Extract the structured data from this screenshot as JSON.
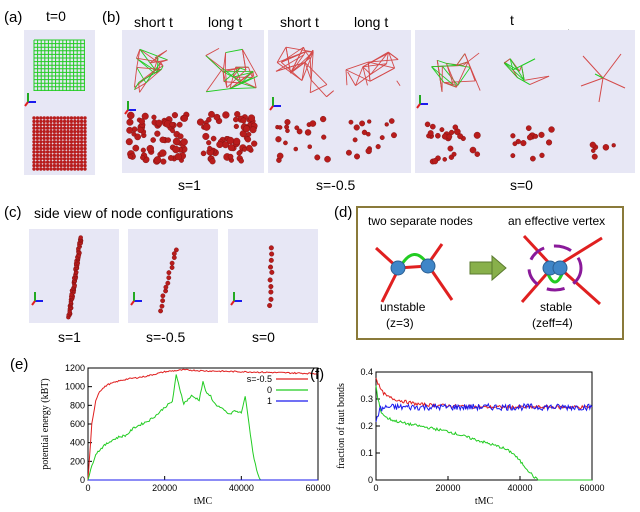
{
  "panel_a": {
    "label": "(a)",
    "title": "t=0"
  },
  "panel_b": {
    "label": "(b)",
    "headers": [
      "short t",
      "long t",
      "short t",
      "long t",
      "t"
    ],
    "s_labels": [
      "s=1",
      "s=-0.5",
      "s=0"
    ]
  },
  "panel_c": {
    "label": "(c)",
    "title": "side view of node configurations",
    "s_labels": [
      "s=1",
      "s=-0.5",
      "s=0"
    ]
  },
  "panel_d": {
    "label": "(d)",
    "left_title": "two separate nodes",
    "right_title": "an effective vertex",
    "left_state": "unstable",
    "left_z": "(z=3)",
    "right_state": "stable",
    "right_z": "(zeff=4)"
  },
  "colors": {
    "red": "#e02020",
    "green": "#22cc22",
    "blue": "#1a1aee",
    "node": "#3f86c8",
    "arrow": "#88b04b",
    "frame": "#8a7a3a"
  },
  "chart_data": [
    {
      "panel": "(e)",
      "type": "line",
      "xlabel": "tMC",
      "ylabel": "potential energy (kBT)",
      "xlim": [
        0,
        60000
      ],
      "ylim": [
        0,
        1200
      ],
      "xticks": [
        0,
        20000,
        40000,
        60000
      ],
      "yticks": [
        0,
        200,
        400,
        600,
        800,
        1000,
        1200
      ],
      "legend_title": "s=-0.5",
      "series": [
        {
          "name": "-0.5",
          "color": "#e02020",
          "x": [
            0,
            1000,
            2000,
            3000,
            5000,
            8000,
            10000,
            15000,
            20000,
            25000,
            30000,
            40000,
            50000,
            60000
          ],
          "y": [
            0,
            600,
            850,
            950,
            1020,
            1060,
            1080,
            1110,
            1160,
            1180,
            1170,
            1160,
            1150,
            1140
          ]
        },
        {
          "name": "0",
          "color": "#22cc22",
          "x": [
            0,
            1000,
            2000,
            4000,
            6000,
            8000,
            10000,
            12000,
            14000,
            16000,
            18000,
            20000,
            22000,
            23000,
            25000,
            27000,
            29000,
            30000,
            31000,
            32000,
            33000,
            35000,
            37000,
            38000,
            40000,
            41000,
            42000,
            43000,
            44000,
            45000,
            60000
          ],
          "y": [
            0,
            150,
            280,
            360,
            420,
            460,
            480,
            560,
            600,
            640,
            700,
            780,
            840,
            1120,
            820,
            900,
            860,
            1050,
            920,
            900,
            820,
            760,
            700,
            740,
            720,
            900,
            600,
            300,
            100,
            0,
            0
          ]
        },
        {
          "name": "1",
          "color": "#1a1aee",
          "x": [
            0,
            60000
          ],
          "y": [
            0,
            0
          ]
        }
      ]
    },
    {
      "panel": "(f)",
      "type": "line",
      "xlabel": "tMC",
      "ylabel": "fraction of taut bonds",
      "xlim": [
        0,
        60000
      ],
      "ylim": [
        0,
        0.4
      ],
      "xticks": [
        0,
        20000,
        40000,
        60000
      ],
      "yticks": [
        0,
        0.1,
        0.2,
        0.3,
        0.4
      ],
      "series": [
        {
          "name": "-0.5",
          "color": "#e02020",
          "x": [
            0,
            500,
            1500,
            3000,
            5000,
            8000,
            12000,
            20000,
            30000,
            40000,
            50000,
            60000
          ],
          "y": [
            0.38,
            0.36,
            0.33,
            0.31,
            0.3,
            0.29,
            0.28,
            0.275,
            0.27,
            0.27,
            0.27,
            0.27
          ]
        },
        {
          "name": "0",
          "color": "#22cc22",
          "x": [
            0,
            500,
            1500,
            3000,
            5000,
            8000,
            12000,
            16000,
            20000,
            25000,
            30000,
            35000,
            38000,
            40000,
            42000,
            44000,
            45000,
            60000
          ],
          "y": [
            0.35,
            0.3,
            0.25,
            0.23,
            0.22,
            0.21,
            0.2,
            0.19,
            0.18,
            0.16,
            0.14,
            0.12,
            0.1,
            0.07,
            0.04,
            0.01,
            0,
            0
          ]
        },
        {
          "name": "1",
          "color": "#1a1aee",
          "x": [
            0,
            1000,
            3000,
            60000
          ],
          "y": [
            0.22,
            0.26,
            0.27,
            0.27
          ]
        }
      ]
    }
  ]
}
